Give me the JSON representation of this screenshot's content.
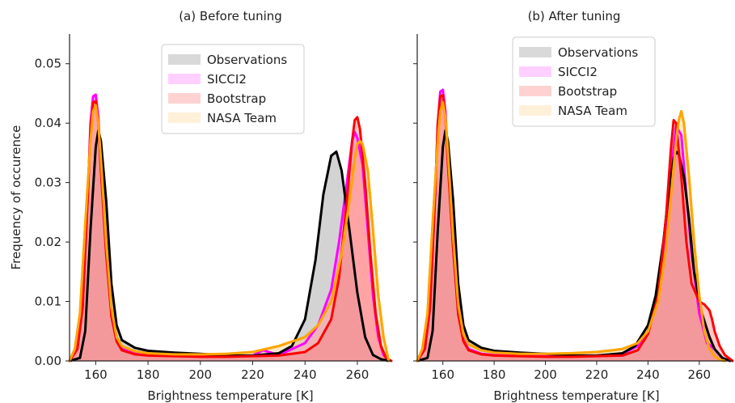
{
  "figure": {
    "ylabel": "Frequency of occurence"
  },
  "colors": {
    "observations": "#000000",
    "sicci2": "#ff00ff",
    "bootstrap": "#ff0000",
    "nasa_team": "#ffa500"
  },
  "chart_data": [
    {
      "type": "line",
      "title": "(a)  Before tuning",
      "xlabel": "Brightness temperature [K]",
      "ylabel": "Frequency of occurence",
      "xlim": [
        150,
        273
      ],
      "ylim": [
        0,
        0.055
      ],
      "xticks": [
        160,
        180,
        200,
        220,
        240,
        260
      ],
      "yticks": [
        0.0,
        0.01,
        0.02,
        0.03,
        0.04,
        0.05
      ],
      "yticklabels": [
        "0.00",
        "0.01",
        "0.02",
        "0.03",
        "0.04",
        "0.05"
      ],
      "legend_position": "top-center",
      "series": [
        {
          "name": "Observations",
          "color": "#000000",
          "x": [
            150,
            154,
            156,
            158,
            160,
            161,
            162,
            164,
            166,
            168,
            170,
            175,
            180,
            190,
            200,
            210,
            220,
            230,
            235,
            240,
            244,
            247,
            250,
            252,
            254,
            257,
            260,
            263,
            266,
            269,
            272
          ],
          "y": [
            0,
            0.0005,
            0.005,
            0.022,
            0.036,
            0.0388,
            0.037,
            0.027,
            0.013,
            0.006,
            0.0035,
            0.0022,
            0.0017,
            0.0014,
            0.0012,
            0.0009,
            0.0009,
            0.0013,
            0.0025,
            0.007,
            0.017,
            0.028,
            0.0345,
            0.0352,
            0.032,
            0.022,
            0.0115,
            0.004,
            0.001,
            0.0003,
            0
          ]
        },
        {
          "name": "SICCI2",
          "color": "#ff00ff",
          "x": [
            150,
            153,
            155,
            157,
            158,
            159,
            160,
            161,
            162,
            164,
            166,
            168,
            170,
            175,
            180,
            190,
            200,
            210,
            220,
            224,
            230,
            240,
            245,
            250,
            253,
            256,
            258,
            259,
            260,
            262,
            264,
            266,
            268,
            270,
            272
          ],
          "y": [
            0,
            0.002,
            0.009,
            0.028,
            0.04,
            0.0445,
            0.0448,
            0.041,
            0.033,
            0.019,
            0.008,
            0.0035,
            0.002,
            0.0012,
            0.001,
            0.0009,
            0.0008,
            0.0008,
            0.0009,
            0.0018,
            0.001,
            0.003,
            0.006,
            0.012,
            0.02,
            0.03,
            0.037,
            0.0385,
            0.0375,
            0.033,
            0.022,
            0.011,
            0.004,
            0.001,
            0
          ]
        },
        {
          "name": "Bootstrap",
          "color": "#ff0000",
          "x": [
            150,
            153,
            155,
            157,
            158,
            159,
            160,
            161,
            162,
            164,
            166,
            168,
            170,
            175,
            180,
            190,
            200,
            210,
            220,
            230,
            240,
            245,
            250,
            253,
            256,
            258,
            259,
            260,
            261,
            263,
            265,
            267,
            269,
            271,
            273
          ],
          "y": [
            0,
            0.002,
            0.009,
            0.028,
            0.039,
            0.0435,
            0.0437,
            0.04,
            0.032,
            0.018,
            0.0075,
            0.0033,
            0.0018,
            0.0011,
            0.0009,
            0.0008,
            0.0007,
            0.0007,
            0.0008,
            0.0009,
            0.0015,
            0.003,
            0.007,
            0.014,
            0.027,
            0.037,
            0.0405,
            0.041,
            0.039,
            0.03,
            0.018,
            0.008,
            0.0025,
            0.0005,
            0
          ]
        },
        {
          "name": "NASA Team",
          "color": "#ffa500",
          "x": [
            150,
            152,
            154,
            156,
            158,
            159,
            160,
            161,
            162,
            164,
            166,
            168,
            170,
            175,
            180,
            190,
            200,
            210,
            220,
            230,
            240,
            245,
            250,
            254,
            257,
            259,
            260,
            261,
            262,
            264,
            266,
            268,
            270,
            272
          ],
          "y": [
            0,
            0.002,
            0.008,
            0.023,
            0.037,
            0.042,
            0.043,
            0.04,
            0.034,
            0.02,
            0.009,
            0.004,
            0.0025,
            0.0016,
            0.0013,
            0.0011,
            0.0011,
            0.0012,
            0.0015,
            0.0025,
            0.004,
            0.006,
            0.01,
            0.018,
            0.027,
            0.034,
            0.0365,
            0.037,
            0.0365,
            0.032,
            0.022,
            0.011,
            0.004,
            0
          ]
        }
      ]
    },
    {
      "type": "line",
      "title": "(b) After tuning",
      "xlabel": "Brightness temperature [K]",
      "xlim": [
        150,
        273
      ],
      "ylim": [
        0,
        0.055
      ],
      "xticks": [
        160,
        180,
        200,
        220,
        240,
        260
      ],
      "legend_position": "top-left",
      "series": [
        {
          "name": "Observations",
          "color": "#000000",
          "x": [
            150,
            154,
            156,
            158,
            160,
            161,
            162,
            164,
            166,
            168,
            170,
            175,
            180,
            190,
            200,
            210,
            220,
            230,
            235,
            240,
            243,
            246,
            248,
            250,
            251,
            252,
            254,
            256,
            258,
            261,
            264,
            266,
            269,
            272
          ],
          "y": [
            0,
            0.0005,
            0.005,
            0.022,
            0.036,
            0.0388,
            0.037,
            0.027,
            0.013,
            0.006,
            0.0035,
            0.0022,
            0.0017,
            0.0014,
            0.0012,
            0.0009,
            0.0009,
            0.0013,
            0.0025,
            0.006,
            0.011,
            0.02,
            0.028,
            0.034,
            0.0352,
            0.0348,
            0.031,
            0.024,
            0.015,
            0.008,
            0.004,
            0.002,
            0.0005,
            0
          ]
        },
        {
          "name": "SICCI2",
          "color": "#ff00ff",
          "x": [
            150,
            153,
            155,
            157,
            158,
            159,
            160,
            161,
            162,
            164,
            166,
            168,
            170,
            175,
            180,
            190,
            200,
            210,
            220,
            230,
            236,
            240,
            244,
            247,
            249,
            251,
            253,
            255,
            257,
            260,
            263,
            266,
            269,
            272
          ],
          "y": [
            0,
            0.002,
            0.009,
            0.028,
            0.04,
            0.0453,
            0.0456,
            0.042,
            0.034,
            0.019,
            0.008,
            0.0035,
            0.002,
            0.0012,
            0.001,
            0.0009,
            0.0008,
            0.0008,
            0.0009,
            0.0012,
            0.0025,
            0.005,
            0.011,
            0.022,
            0.032,
            0.0395,
            0.038,
            0.028,
            0.018,
            0.008,
            0.003,
            0.002,
            0.0005,
            0
          ]
        },
        {
          "name": "Bootstrap",
          "color": "#ff0000",
          "x": [
            150,
            153,
            155,
            157,
            158,
            159,
            160,
            161,
            162,
            164,
            166,
            168,
            170,
            175,
            180,
            190,
            200,
            210,
            220,
            230,
            236,
            240,
            244,
            247,
            249,
            250,
            251,
            253,
            255,
            257,
            260,
            262,
            264,
            265,
            266,
            268,
            270,
            273
          ],
          "y": [
            0,
            0.002,
            0.009,
            0.028,
            0.04,
            0.0445,
            0.0447,
            0.041,
            0.033,
            0.019,
            0.0078,
            0.0033,
            0.0018,
            0.0011,
            0.0009,
            0.0008,
            0.0007,
            0.0007,
            0.0008,
            0.0009,
            0.0018,
            0.0045,
            0.011,
            0.024,
            0.036,
            0.0405,
            0.04,
            0.031,
            0.02,
            0.013,
            0.01,
            0.0095,
            0.0085,
            0.007,
            0.005,
            0.0025,
            0.001,
            0
          ]
        },
        {
          "name": "NASA Team",
          "color": "#ffa500",
          "x": [
            150,
            152,
            154,
            156,
            158,
            159,
            160,
            161,
            162,
            164,
            166,
            168,
            170,
            175,
            180,
            190,
            200,
            210,
            220,
            230,
            236,
            240,
            244,
            247,
            249,
            251,
            252,
            253,
            254,
            256,
            258,
            260,
            262,
            264,
            266,
            268,
            270
          ],
          "y": [
            0,
            0.002,
            0.008,
            0.023,
            0.037,
            0.042,
            0.0435,
            0.041,
            0.035,
            0.021,
            0.0095,
            0.0045,
            0.0028,
            0.0018,
            0.0014,
            0.0012,
            0.0012,
            0.0013,
            0.0015,
            0.002,
            0.003,
            0.005,
            0.01,
            0.019,
            0.028,
            0.037,
            0.0405,
            0.042,
            0.04,
            0.031,
            0.02,
            0.011,
            0.005,
            0.002,
            0.0008,
            0.0002,
            0
          ]
        }
      ]
    }
  ]
}
